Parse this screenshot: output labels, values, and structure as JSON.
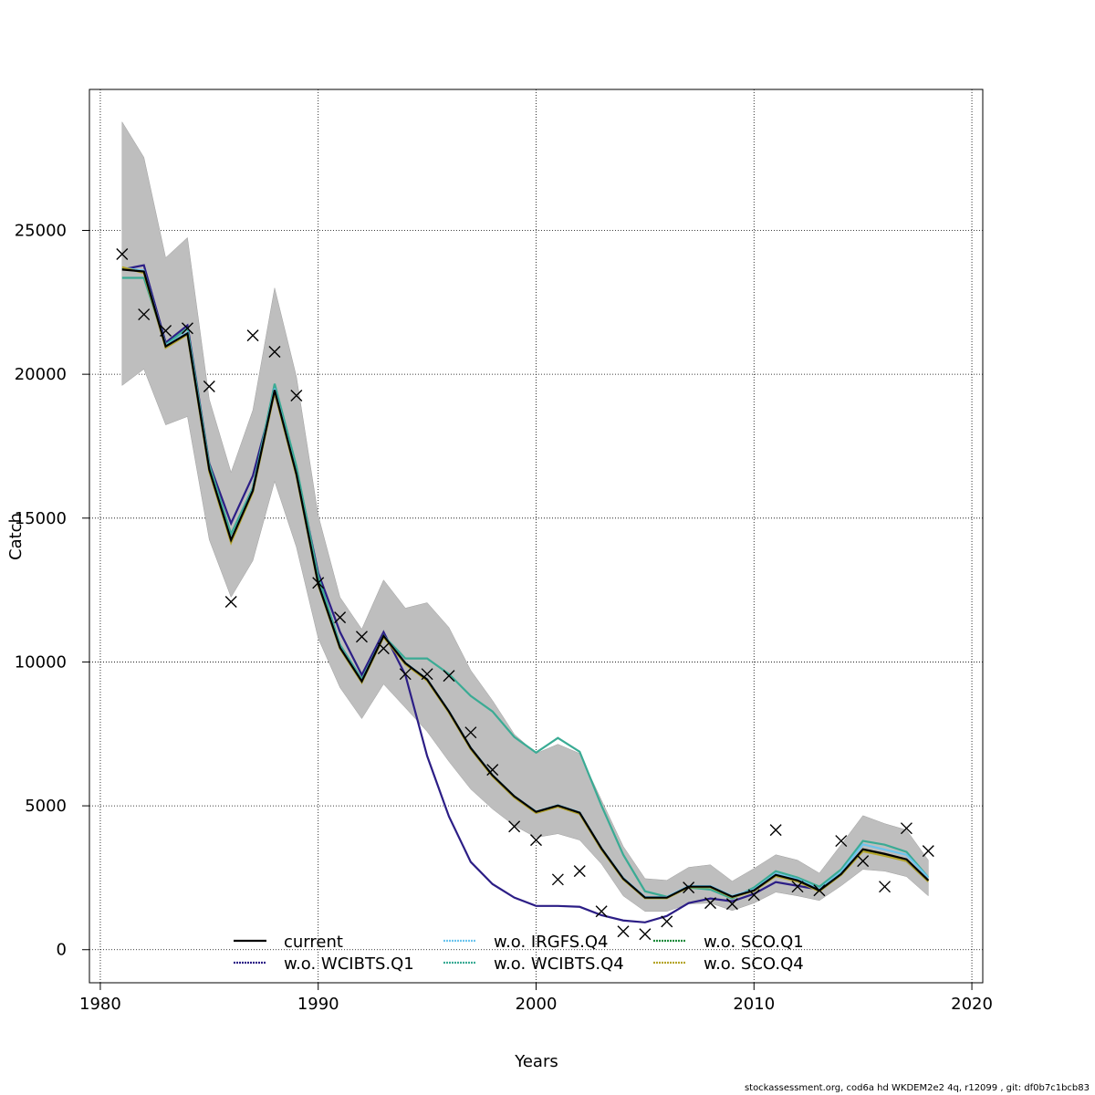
{
  "chart_data": {
    "type": "line",
    "title": "",
    "xlabel": "Years",
    "ylabel": "Catch",
    "xlim": [
      1979.5,
      2020.5
    ],
    "ylim": [
      -1150,
      29900
    ],
    "xticks": [
      1980,
      1990,
      2000,
      2010,
      2020
    ],
    "yticks": [
      0,
      5000,
      10000,
      15000,
      20000,
      25000
    ],
    "grid": true,
    "legend_position": "bottom-center",
    "x": [
      1981,
      1982,
      1983,
      1984,
      1985,
      1986,
      1987,
      1988,
      1989,
      1990,
      1991,
      1992,
      1993,
      1994,
      1995,
      1996,
      1997,
      1998,
      1999,
      2000,
      2001,
      2002,
      2003,
      2004,
      2005,
      2006,
      2007,
      2008,
      2009,
      2010,
      2011,
      2012,
      2013,
      2014,
      2015,
      2016,
      2017,
      2018
    ],
    "confidence_band": {
      "color": "#bebebe",
      "upper": [
        28770,
        27540,
        24050,
        24750,
        19130,
        16590,
        18750,
        23000,
        19920,
        15100,
        12250,
        11140,
        12850,
        11870,
        12060,
        11200,
        9710,
        8660,
        7490,
        6820,
        7140,
        6820,
        5200,
        3590,
        2470,
        2410,
        2860,
        2950,
        2380,
        2820,
        3300,
        3110,
        2660,
        3650,
        4660,
        4380,
        4160,
        3110
      ],
      "lower": [
        19610,
        20180,
        18240,
        18530,
        14250,
        12250,
        13520,
        16280,
        13990,
        10820,
        9110,
        8030,
        9230,
        8410,
        7580,
        6540,
        5580,
        4890,
        4310,
        3900,
        4030,
        3810,
        2980,
        1870,
        1330,
        1330,
        1590,
        1620,
        1360,
        1620,
        2000,
        1870,
        1710,
        2220,
        2790,
        2730,
        2540,
        1870
      ]
    },
    "observations": {
      "marker": "x",
      "values": [
        24175,
        22080,
        21510,
        21600,
        19575,
        12090,
        21350,
        20780,
        19260,
        12750,
        11550,
        10880,
        10470,
        9580,
        9580,
        9520,
        7550,
        6250,
        4280,
        3810,
        2440,
        2730,
        1330,
        635,
        540,
        980,
        2160,
        1620,
        1590,
        1900,
        4160,
        2190,
        2060,
        3780,
        3080,
        2190,
        4220,
        3430
      ]
    },
    "series": [
      {
        "name": "current",
        "color": "#000000",
        "values": [
          23640,
          23570,
          20970,
          21420,
          16690,
          14240,
          15960,
          19450,
          16530,
          12720,
          10500,
          9330,
          10910,
          9960,
          9390,
          8280,
          7010,
          6060,
          5330,
          4790,
          5010,
          4760,
          3520,
          2470,
          1810,
          1810,
          2190,
          2190,
          1840,
          2060,
          2600,
          2410,
          2060,
          2630,
          3490,
          3330,
          3140,
          2410
        ]
      },
      {
        "name": "w.o. WCIBTS.Q1",
        "color": "#2c1e86",
        "values": [
          23640,
          23790,
          21100,
          21700,
          16900,
          14820,
          16470,
          19350,
          16700,
          13100,
          11040,
          9550,
          11040,
          9550,
          6730,
          4630,
          3050,
          2280,
          1810,
          1520,
          1520,
          1490,
          1200,
          1015,
          950,
          1170,
          1620,
          1780,
          1680,
          1940,
          2350,
          2220,
          2090,
          2660,
          3430,
          3300,
          3080,
          2380
        ]
      },
      {
        "name": "w.o. IRGFS.Q4",
        "color": "#6cc4ee",
        "values": [
          23700,
          23600,
          21000,
          21450,
          16700,
          14250,
          15980,
          19500,
          16550,
          12730,
          10520,
          9340,
          10920,
          9970,
          9400,
          8290,
          7020,
          6070,
          5340,
          4800,
          5020,
          4770,
          3530,
          2490,
          1830,
          1830,
          2210,
          2210,
          1860,
          2090,
          2640,
          2450,
          2100,
          2700,
          3660,
          3480,
          3300,
          2500
        ]
      },
      {
        "name": "w.o. WCIBTS.Q4",
        "color": "#3aab94",
        "values": [
          23350,
          23350,
          21030,
          21600,
          16850,
          14450,
          16050,
          19670,
          16800,
          12980,
          10600,
          9400,
          10910,
          10120,
          10120,
          9580,
          8820,
          8280,
          7390,
          6850,
          7360,
          6880,
          5010,
          3300,
          2030,
          1840,
          2160,
          2090,
          1780,
          2160,
          2730,
          2510,
          2190,
          2790,
          3780,
          3650,
          3400,
          2510
        ]
      },
      {
        "name": "w.o. SCO.Q1",
        "color": "#1b8a3a",
        "values": [
          23680,
          23550,
          20950,
          21400,
          16650,
          14200,
          15930,
          19420,
          16500,
          12700,
          10480,
          9310,
          10890,
          9940,
          9370,
          8260,
          6990,
          6040,
          5310,
          4770,
          4990,
          4740,
          3500,
          2460,
          1800,
          1800,
          2180,
          2180,
          1830,
          2050,
          2590,
          2400,
          2050,
          2620,
          3470,
          3310,
          3120,
          2400
        ]
      },
      {
        "name": "w.o. SCO.Q4",
        "color": "#b5a52a",
        "values": [
          23720,
          23520,
          20920,
          21380,
          16620,
          14150,
          15900,
          19380,
          16470,
          12680,
          10460,
          9290,
          10870,
          9920,
          9350,
          8240,
          6970,
          6020,
          5290,
          4750,
          4970,
          4720,
          3480,
          2440,
          1790,
          1790,
          2170,
          2170,
          1820,
          2040,
          2560,
          2370,
          2030,
          2600,
          3420,
          3260,
          3080,
          2370
        ]
      }
    ]
  },
  "footer": "stockassessment.org, cod6a  hd  WKDEM2e2  4q, r12099 , git: df0b7c1bcb83"
}
